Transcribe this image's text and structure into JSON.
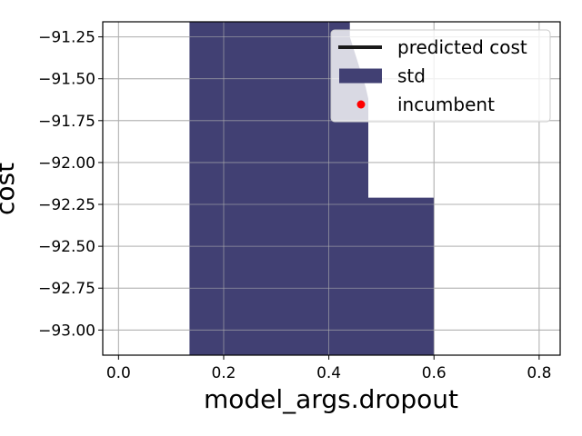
{
  "chart_data": {
    "type": "area",
    "xlabel": "model_args.dropout",
    "ylabel": "cost",
    "xlim": [
      -0.03,
      0.84
    ],
    "ylim": [
      -93.15,
      -91.16
    ],
    "grid": true,
    "legend_position": "top-right",
    "x_ticks": [
      0.0,
      0.2,
      0.4,
      0.6,
      0.8
    ],
    "x_tick_labels": [
      "0.0",
      "0.2",
      "0.4",
      "0.6",
      "0.8"
    ],
    "y_ticks": [
      -91.25,
      -91.5,
      -91.75,
      -92.0,
      -92.25,
      -92.5,
      -92.75,
      -93.0
    ],
    "y_tick_labels": [
      "−91.25",
      "−91.50",
      "−91.75",
      "−92.00",
      "−92.25",
      "−92.50",
      "−92.75",
      "−93.00"
    ],
    "series": [
      {
        "name": "std",
        "color": "#414073",
        "x": [
          0.135,
          0.135,
          0.44,
          0.44,
          0.45,
          0.46,
          0.47,
          0.475,
          0.475,
          0.6,
          0.6
        ],
        "upper": [
          -91.16,
          -91.16,
          -91.16,
          -91.25,
          -91.35,
          -91.45,
          -91.55,
          -91.62,
          -92.21,
          -92.21,
          -93.15
        ],
        "lower": [
          -93.15,
          -93.15,
          -93.15,
          -93.15,
          -93.15,
          -93.15,
          -93.15,
          -93.15,
          -93.15,
          -93.15,
          -93.15
        ]
      }
    ],
    "legend": [
      {
        "label": "predicted cost",
        "kind": "line",
        "color": "#1a1a1a"
      },
      {
        "label": "std",
        "kind": "patch",
        "color": "#414073"
      },
      {
        "label": "incumbent",
        "kind": "marker",
        "color": "#ff0000"
      }
    ]
  }
}
